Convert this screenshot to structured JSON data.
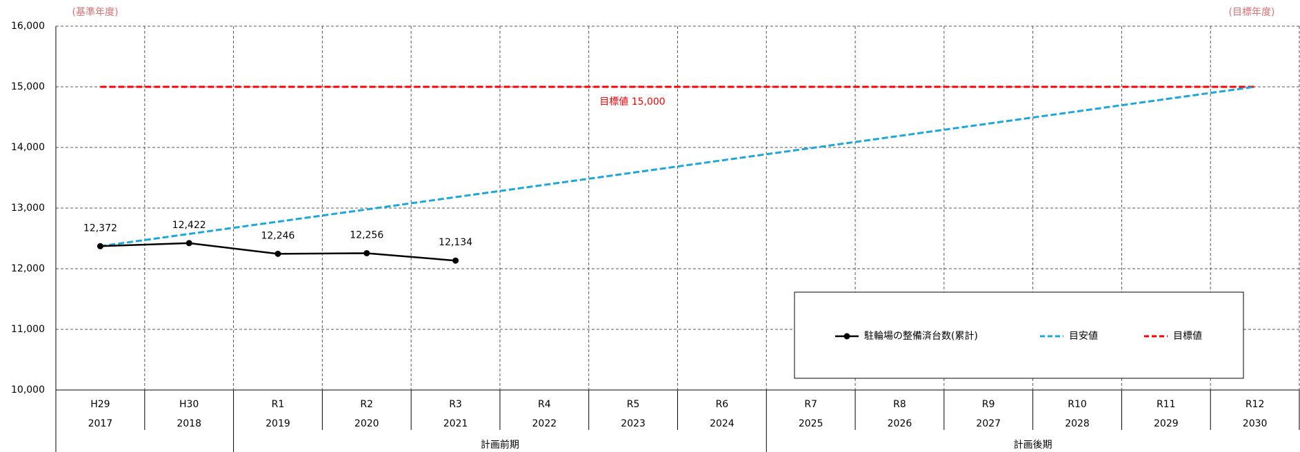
{
  "chart_data": {
    "type": "line",
    "annotations": {
      "base_year": "(基準年度)",
      "target_year": "(目標年度)",
      "target_label": "目標値 15,000"
    },
    "categories": [
      "H29",
      "H30",
      "R1",
      "R2",
      "R3",
      "R4",
      "R5",
      "R6",
      "R7",
      "R8",
      "R9",
      "R10",
      "R11",
      "R12"
    ],
    "years": [
      "2017",
      "2018",
      "2019",
      "2020",
      "2021",
      "2022",
      "2023",
      "2024",
      "2025",
      "2026",
      "2027",
      "2028",
      "2029",
      "2030"
    ],
    "groups": [
      {
        "name": "計画前期",
        "span": [
          2,
          7
        ]
      },
      {
        "name": "計画後期",
        "span": [
          8,
          13
        ]
      }
    ],
    "series": [
      {
        "name": "駐輪場の整備済台数(累計)",
        "color": "#000000",
        "style": "solid",
        "markers": true,
        "values": [
          12372,
          12422,
          12246,
          12256,
          12134,
          null,
          null,
          null,
          null,
          null,
          null,
          null,
          null,
          null
        ],
        "value_labels": [
          "12,372",
          "12,422",
          "12,246",
          "12,256",
          "12,134",
          null,
          null,
          null,
          null,
          null,
          null,
          null,
          null,
          null
        ]
      },
      {
        "name": "目安値",
        "color": "#1aa7de",
        "style": "dashed",
        "markers": false,
        "values": [
          12372,
          12574,
          12776,
          12978,
          13181,
          13383,
          13585,
          13787,
          13989,
          14191,
          14393,
          14595,
          14798,
          15000
        ]
      },
      {
        "name": "目標値",
        "color": "#ff0000",
        "style": "dashed",
        "markers": false,
        "values": [
          15000,
          15000,
          15000,
          15000,
          15000,
          15000,
          15000,
          15000,
          15000,
          15000,
          15000,
          15000,
          15000,
          15000
        ]
      }
    ],
    "ylim": [
      10000,
      16000
    ],
    "yticks": [
      {
        "value": 10000,
        "label": "10,000"
      },
      {
        "value": 11000,
        "label": "11,000"
      },
      {
        "value": 12000,
        "label": "12,000"
      },
      {
        "value": 13000,
        "label": "13,000"
      },
      {
        "value": 14000,
        "label": "14,000"
      },
      {
        "value": 15000,
        "label": "15,000"
      },
      {
        "value": 16000,
        "label": "16,000"
      }
    ],
    "grid": true,
    "legend": "bottom-right"
  }
}
